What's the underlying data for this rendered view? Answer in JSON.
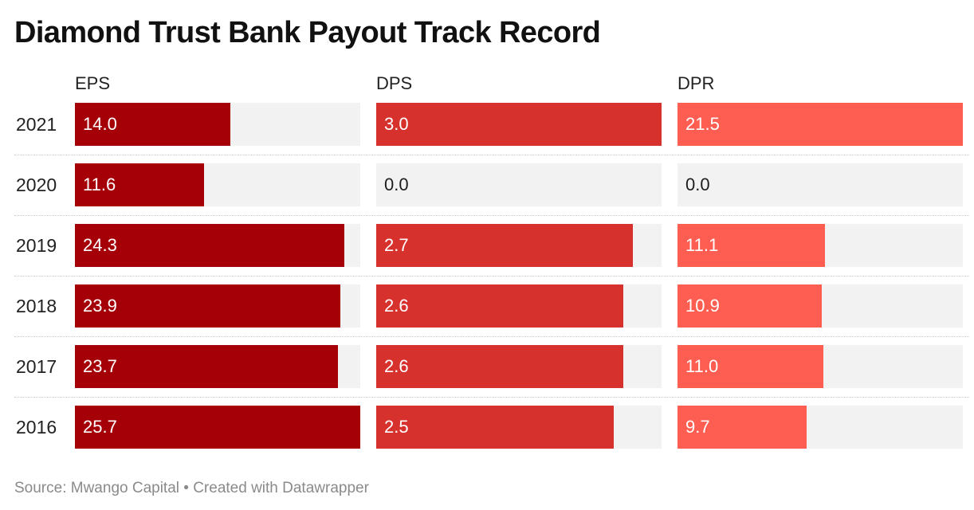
{
  "title": "Diamond Trust Bank Payout Track Record",
  "source": "Source: Mwango Capital • Created with Datawrapper",
  "chart_data": {
    "type": "bar",
    "categories": [
      "2021",
      "2020",
      "2019",
      "2018",
      "2017",
      "2016"
    ],
    "series": [
      {
        "name": "EPS",
        "color": "#a50008",
        "max": 25.7,
        "values": [
          14.0,
          11.6,
          24.3,
          23.9,
          23.7,
          25.7
        ],
        "labels": [
          "14.0",
          "11.6",
          "24.3",
          "23.9",
          "23.7",
          "25.7"
        ]
      },
      {
        "name": "DPS",
        "color": "#d7312d",
        "max": 3.0,
        "values": [
          3.0,
          0.0,
          2.7,
          2.6,
          2.6,
          2.5
        ],
        "labels": [
          "3.0",
          "0.0",
          "2.7",
          "2.6",
          "2.6",
          "2.5"
        ]
      },
      {
        "name": "DPR",
        "color": "#fe5e51",
        "max": 21.5,
        "values": [
          21.5,
          0.0,
          11.1,
          10.9,
          11.0,
          9.7
        ],
        "labels": [
          "21.5",
          "0.0",
          "11.1",
          "10.9",
          "11.0",
          "9.7"
        ]
      }
    ]
  }
}
